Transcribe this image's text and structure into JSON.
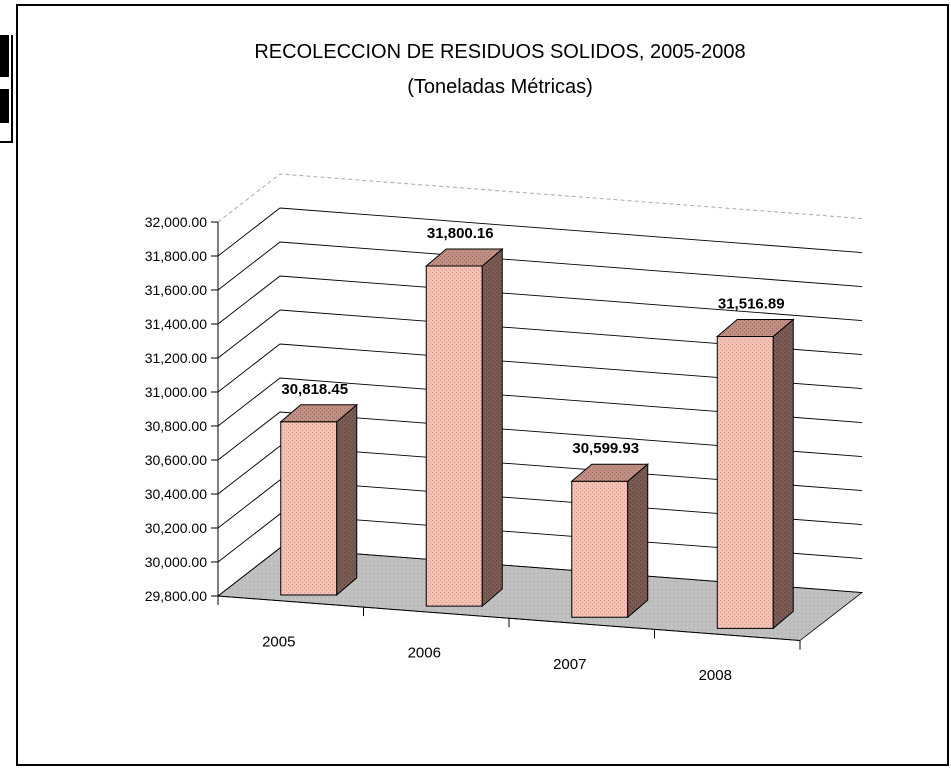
{
  "chart_data": {
    "type": "bar",
    "title": "RECOLECCION DE RESIDUOS SOLIDOS, 2005-2008",
    "subtitle": "(Toneladas Métricas)",
    "categories": [
      "2005",
      "2006",
      "2007",
      "2008"
    ],
    "values": [
      30818.45,
      31800.16,
      30599.93,
      31516.89
    ],
    "value_labels": [
      "30,818.45",
      "31,800.16",
      "30,599.93",
      "31,516.89"
    ],
    "ylim": [
      29800,
      32000
    ],
    "yticks": [
      "29,800.00",
      "30,000.00",
      "30,200.00",
      "30,400.00",
      "30,600.00",
      "30,800.00",
      "31,000.00",
      "31,200.00",
      "31,400.00",
      "31,600.00",
      "31,800.00",
      "32,000.00"
    ],
    "xlabel": "",
    "ylabel": "",
    "grid": true,
    "style": "3d-column"
  },
  "colors": {
    "bar_front": "#f3c2b4",
    "bar_side": "#7b5c55",
    "bar_top": "#c08e82",
    "floor": "#c0c0c0",
    "grid": "#000000"
  }
}
